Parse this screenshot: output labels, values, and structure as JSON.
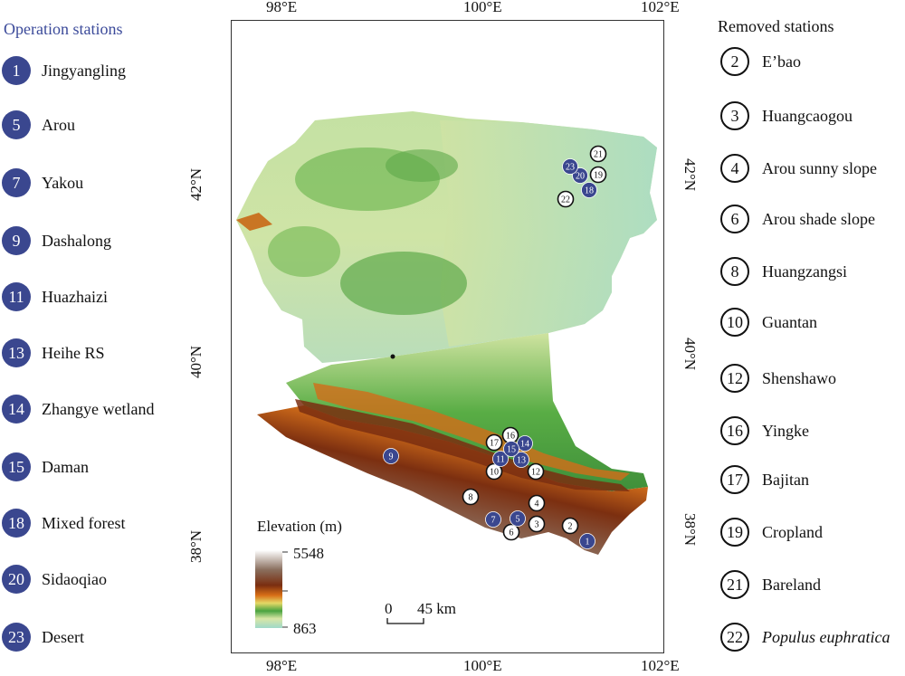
{
  "operation": {
    "title": "Operation stations",
    "items": [
      {
        "num": "1",
        "name": "Jingyangling"
      },
      {
        "num": "5",
        "name": "Arou"
      },
      {
        "num": "7",
        "name": "Yakou"
      },
      {
        "num": "9",
        "name": "Dashalong"
      },
      {
        "num": "11",
        "name": "Huazhaizi"
      },
      {
        "num": "13",
        "name": "Heihe RS"
      },
      {
        "num": "14",
        "name": "Zhangye wetland"
      },
      {
        "num": "15",
        "name": "Daman"
      },
      {
        "num": "18",
        "name": "Mixed forest"
      },
      {
        "num": "20",
        "name": "Sidaoqiao"
      },
      {
        "num": "23",
        "name": "Desert"
      }
    ]
  },
  "removed": {
    "title": "Removed stations",
    "items": [
      {
        "num": "2",
        "name": "E’bao"
      },
      {
        "num": "3",
        "name": "Huangcaogou"
      },
      {
        "num": "4",
        "name": "Arou sunny slope"
      },
      {
        "num": "6",
        "name": "Arou shade slope"
      },
      {
        "num": "8",
        "name": "Huangzangsi"
      },
      {
        "num": "10",
        "name": "Guantan"
      },
      {
        "num": "12",
        "name": "Shenshawo"
      },
      {
        "num": "16",
        "name": "Yingke"
      },
      {
        "num": "17",
        "name": "Bajitan"
      },
      {
        "num": "19",
        "name": "Cropland"
      },
      {
        "num": "21",
        "name": "Bareland"
      },
      {
        "num": "22",
        "name": "Populus euphratica"
      }
    ]
  },
  "axes": {
    "top": [
      "98°E",
      "100°E",
      "102°E"
    ],
    "bottom": [
      "98°E",
      "100°E",
      "102°E"
    ],
    "left": [
      "42°N",
      "40°N",
      "38°N"
    ],
    "right": [
      "42°N",
      "40°N",
      "38°N"
    ]
  },
  "legend": {
    "title": "Elevation (m)",
    "max": "5548",
    "min": "863"
  },
  "scalebar": {
    "zero": "0",
    "label": "45 km"
  },
  "colors": {
    "operation_badge": "#3a478f",
    "operation_title": "#3b4a9a",
    "elevation_ramp": [
      "#ffffff",
      "#8a6f5e",
      "#7a2e10",
      "#d86f17",
      "#e4d866",
      "#4aa340",
      "#d9e6a6",
      "#9fd9c9"
    ]
  },
  "map_markers": {
    "operation": [
      "1",
      "5",
      "7",
      "9",
      "11",
      "13",
      "14",
      "15",
      "18",
      "20",
      "23"
    ],
    "removed": [
      "2",
      "3",
      "4",
      "6",
      "8",
      "10",
      "12",
      "16",
      "17",
      "19",
      "21",
      "22"
    ]
  }
}
